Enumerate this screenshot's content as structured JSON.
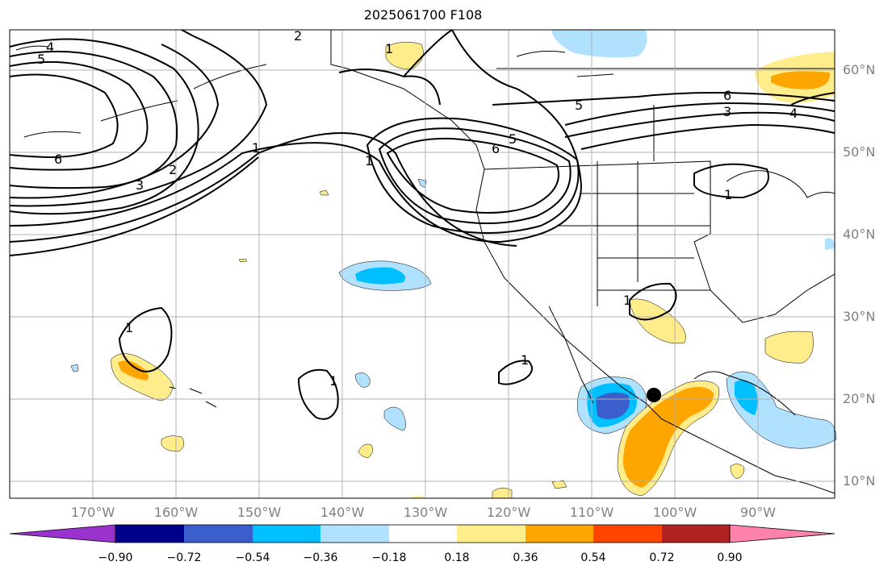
{
  "title": "2025061700 F108",
  "map": {
    "lat_labels": [
      "60°N",
      "50°N",
      "40°N",
      "30°N",
      "20°N",
      "10°N"
    ],
    "lon_labels": [
      "170°W",
      "160°W",
      "150°W",
      "140°W",
      "130°W",
      "120°W",
      "110°W",
      "100°W",
      "90°W"
    ],
    "contour_labels": [
      "4",
      "5",
      "6",
      "3",
      "2",
      "1",
      "2",
      "1",
      "1",
      "6",
      "5",
      "6",
      "3",
      "4",
      "5",
      "1",
      "1",
      "1",
      "1",
      "1"
    ],
    "marker": "storm-center-dot"
  },
  "colorbar": {
    "ticks": [
      "−0.90",
      "−0.72",
      "−0.54",
      "−0.36",
      "−0.18",
      "0.18",
      "0.36",
      "0.54",
      "0.72",
      "0.90"
    ],
    "colors": [
      "#9a32cd",
      "#00008b",
      "#3a5fcd",
      "#00bfff",
      "#b0e2ff",
      "#ffffff",
      "#ffec8b",
      "#ffa500",
      "#ff4500",
      "#b22222",
      "#ff82ab"
    ]
  },
  "colors": {
    "grid": "#b0b0b0",
    "contour": "#000000",
    "axis_text": "#808080"
  }
}
